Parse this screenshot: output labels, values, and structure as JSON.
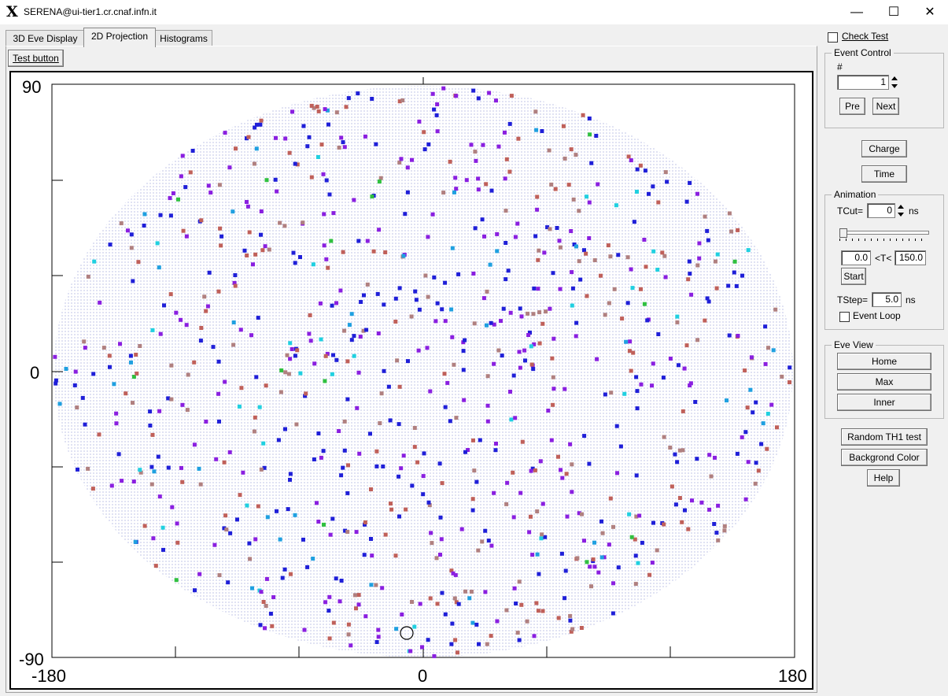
{
  "window": {
    "title": "SERENA@ui-tier1.cr.cnaf.infn.it",
    "logo": "X",
    "minimize": "—",
    "maximize": "☐",
    "close": "✕"
  },
  "tabs": [
    {
      "label": "3D Eve Display",
      "active": false
    },
    {
      "label": "2D Projection",
      "active": true
    },
    {
      "label": "Histograms",
      "active": false
    }
  ],
  "toolbar": {
    "test_button": "Test button"
  },
  "plot": {
    "y_top": "90",
    "y_zero": "0",
    "y_bottom": "-90",
    "x_left": "-180",
    "x_center": "0",
    "x_right": "180"
  },
  "chart_data": {
    "type": "scatter",
    "projection": "Hammer/Aitoff all-sky (ellipse)",
    "xlim": [
      -180,
      180
    ],
    "ylim": [
      -90,
      90
    ],
    "x_ticks": [
      "-180",
      "0",
      "180"
    ],
    "y_ticks": [
      "90",
      "0",
      "-90"
    ],
    "background_grid": "dense blue dot lattice (PMT positions)",
    "hit_colors": [
      "#1f1fd8",
      "#8a1fe0",
      "#c0605a",
      "#b08080",
      "#1fa0e0",
      "#20d0e0",
      "#30c040"
    ],
    "hit_count_approx": 900
  },
  "sidebar": {
    "check_test": "Check Test",
    "event_control": {
      "title": "Event Control",
      "hash_label": "#",
      "event_number": "1",
      "prev": "Pre",
      "next": "Next"
    },
    "charge": "Charge",
    "time": "Time",
    "animation": {
      "title": "Animation",
      "tcut_label": "TCut=",
      "tcut_value": "0",
      "tcut_unit": "ns",
      "t_min": "0.0",
      "t_sep": "<T<",
      "t_max": "150.0",
      "start": "Start",
      "tstep_label": "TStep=",
      "tstep_value": "5.0",
      "tstep_unit": "ns",
      "event_loop": "Event Loop"
    },
    "eve_view": {
      "title": "Eve View",
      "home": "Home",
      "max": "Max",
      "inner": "Inner"
    },
    "random_th1": "Random TH1 test",
    "background_color": "Backgrond Color",
    "help": "Help"
  }
}
